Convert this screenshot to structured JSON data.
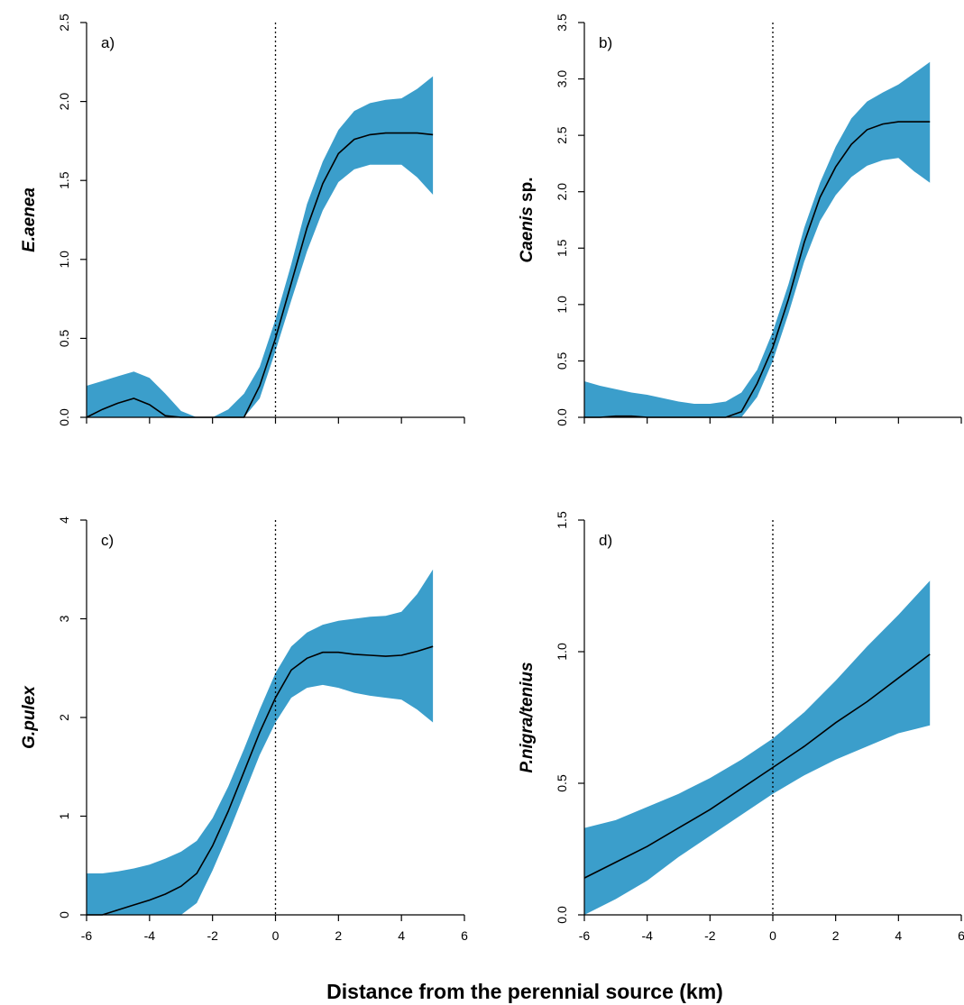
{
  "figure": {
    "xlabel": "Distance from the perennial source (km)",
    "band_color": "#3B9ECB",
    "line_color": "#000000"
  },
  "chart_data": [
    {
      "type": "line",
      "panel": "a)",
      "ylabel": "E.aenea",
      "xlim": [
        -6,
        6
      ],
      "ylim": [
        0,
        2.5
      ],
      "xticks": [
        -6,
        -4,
        -2,
        0,
        2,
        4,
        6
      ],
      "yticks": [
        0.0,
        0.5,
        1.0,
        1.5,
        2.0,
        2.5
      ],
      "ytick_labels": [
        "0.0",
        "0.5",
        "1.0",
        "1.5",
        "2.0",
        "2.5"
      ],
      "xticks_labeled": false,
      "vline": 0,
      "series": [
        {
          "x": [
            -6,
            -5.5,
            -5,
            -4.5,
            -4,
            -3.5,
            -3,
            -2.5,
            -2,
            -1.5,
            -1,
            -0.5,
            0,
            0.5,
            1,
            1.5,
            2,
            2.5,
            3,
            3.5,
            4,
            4.5,
            5
          ],
          "y": [
            0,
            0.05,
            0.09,
            0.12,
            0.08,
            0.01,
            0,
            0,
            0,
            0,
            0,
            0.2,
            0.5,
            0.85,
            1.2,
            1.48,
            1.67,
            1.76,
            1.79,
            1.8,
            1.8,
            1.8,
            1.79
          ],
          "lower": [
            0,
            0,
            0,
            0,
            0,
            0,
            0,
            0,
            0,
            0,
            0,
            0.12,
            0.42,
            0.74,
            1.05,
            1.31,
            1.49,
            1.57,
            1.6,
            1.6,
            1.6,
            1.52,
            1.41
          ],
          "upper": [
            0.2,
            0.23,
            0.26,
            0.29,
            0.25,
            0.15,
            0.04,
            0,
            0,
            0.05,
            0.15,
            0.32,
            0.62,
            0.97,
            1.35,
            1.62,
            1.82,
            1.94,
            1.99,
            2.01,
            2.02,
            2.08,
            2.16
          ]
        }
      ]
    },
    {
      "type": "line",
      "panel": "b)",
      "ylabel": "Caenis sp.",
      "ylabel_italic": "Caenis",
      "ylabel_rest": " sp.",
      "xlim": [
        -6,
        6
      ],
      "ylim": [
        0,
        3.5
      ],
      "xticks": [
        -6,
        -4,
        -2,
        0,
        2,
        4,
        6
      ],
      "yticks": [
        0.0,
        0.5,
        1.0,
        1.5,
        2.0,
        2.5,
        3.0,
        3.5
      ],
      "ytick_labels": [
        "0.0",
        "0.5",
        "1.0",
        "1.5",
        "2.0",
        "2.5",
        "3.0",
        "3.5"
      ],
      "xticks_labeled": false,
      "vline": 0,
      "series": [
        {
          "x": [
            -6,
            -5.5,
            -5,
            -4.5,
            -4,
            -3.5,
            -3,
            -2.5,
            -2,
            -1.5,
            -1,
            -0.5,
            0,
            0.5,
            1,
            1.5,
            2,
            2.5,
            3,
            3.5,
            4,
            4.5,
            5
          ],
          "y": [
            0,
            0,
            0.01,
            0.01,
            0,
            0,
            0,
            0,
            0,
            0,
            0.05,
            0.3,
            0.62,
            1.05,
            1.55,
            1.95,
            2.22,
            2.42,
            2.55,
            2.6,
            2.62,
            2.62,
            2.62
          ],
          "lower": [
            0,
            0,
            0,
            0,
            0,
            0,
            0,
            0,
            0,
            0,
            0,
            0.18,
            0.5,
            0.92,
            1.38,
            1.74,
            1.97,
            2.13,
            2.23,
            2.28,
            2.3,
            2.18,
            2.08
          ],
          "upper": [
            0.32,
            0.28,
            0.25,
            0.22,
            0.2,
            0.17,
            0.14,
            0.12,
            0.12,
            0.14,
            0.22,
            0.42,
            0.76,
            1.18,
            1.68,
            2.08,
            2.4,
            2.65,
            2.8,
            2.88,
            2.95,
            3.05,
            3.15
          ]
        }
      ]
    },
    {
      "type": "line",
      "panel": "c)",
      "ylabel": "G.pulex",
      "xlim": [
        -6,
        6
      ],
      "ylim": [
        0,
        4
      ],
      "xticks": [
        -6,
        -4,
        -2,
        0,
        2,
        4,
        6
      ],
      "xtick_labels": [
        "-6",
        "-4",
        "-2",
        "0",
        "2",
        "4",
        "6"
      ],
      "yticks": [
        0,
        1,
        2,
        3,
        4
      ],
      "ytick_labels": [
        "0",
        "1",
        "2",
        "3",
        "4"
      ],
      "xticks_labeled": true,
      "vline": 0,
      "series": [
        {
          "x": [
            -6,
            -5.5,
            -5,
            -4.5,
            -4,
            -3.5,
            -3,
            -2.5,
            -2,
            -1.5,
            -1,
            -0.5,
            0,
            0.5,
            1,
            1.5,
            2,
            2.5,
            3,
            3.5,
            4,
            4.5,
            5
          ],
          "y": [
            0,
            0,
            0.05,
            0.1,
            0.15,
            0.21,
            0.29,
            0.42,
            0.7,
            1.05,
            1.45,
            1.85,
            2.2,
            2.48,
            2.6,
            2.66,
            2.66,
            2.64,
            2.63,
            2.62,
            2.63,
            2.67,
            2.72
          ],
          "lower": [
            0,
            0,
            0,
            0,
            0,
            0,
            0,
            0.12,
            0.45,
            0.82,
            1.22,
            1.62,
            1.95,
            2.2,
            2.3,
            2.33,
            2.3,
            2.25,
            2.22,
            2.2,
            2.18,
            2.08,
            1.95
          ],
          "upper": [
            0.42,
            0.42,
            0.44,
            0.47,
            0.51,
            0.57,
            0.64,
            0.75,
            0.98,
            1.3,
            1.68,
            2.08,
            2.45,
            2.72,
            2.86,
            2.94,
            2.98,
            3.0,
            3.02,
            3.03,
            3.07,
            3.25,
            3.5
          ]
        }
      ]
    },
    {
      "type": "line",
      "panel": "d)",
      "ylabel": "P.nigra/tenius",
      "xlim": [
        -6,
        6
      ],
      "ylim": [
        0,
        1.5
      ],
      "xticks": [
        -6,
        -4,
        -2,
        0,
        2,
        4,
        6
      ],
      "xtick_labels": [
        "-6",
        "-4",
        "-2",
        "0",
        "2",
        "4",
        "6"
      ],
      "yticks": [
        0.0,
        0.5,
        1.0,
        1.5
      ],
      "ytick_labels": [
        "0.0",
        "0.5",
        "1.0",
        "1.5"
      ],
      "xticks_labeled": true,
      "vline": 0,
      "series": [
        {
          "x": [
            -6,
            -5,
            -4,
            -3,
            -2,
            -1,
            0,
            1,
            2,
            3,
            4,
            5
          ],
          "y": [
            0.14,
            0.2,
            0.26,
            0.33,
            0.4,
            0.48,
            0.56,
            0.64,
            0.73,
            0.81,
            0.9,
            0.99
          ],
          "lower": [
            0,
            0.06,
            0.13,
            0.22,
            0.3,
            0.38,
            0.46,
            0.53,
            0.59,
            0.64,
            0.69,
            0.72
          ],
          "upper": [
            0.33,
            0.36,
            0.41,
            0.46,
            0.52,
            0.59,
            0.67,
            0.77,
            0.89,
            1.02,
            1.14,
            1.27
          ]
        }
      ]
    }
  ]
}
